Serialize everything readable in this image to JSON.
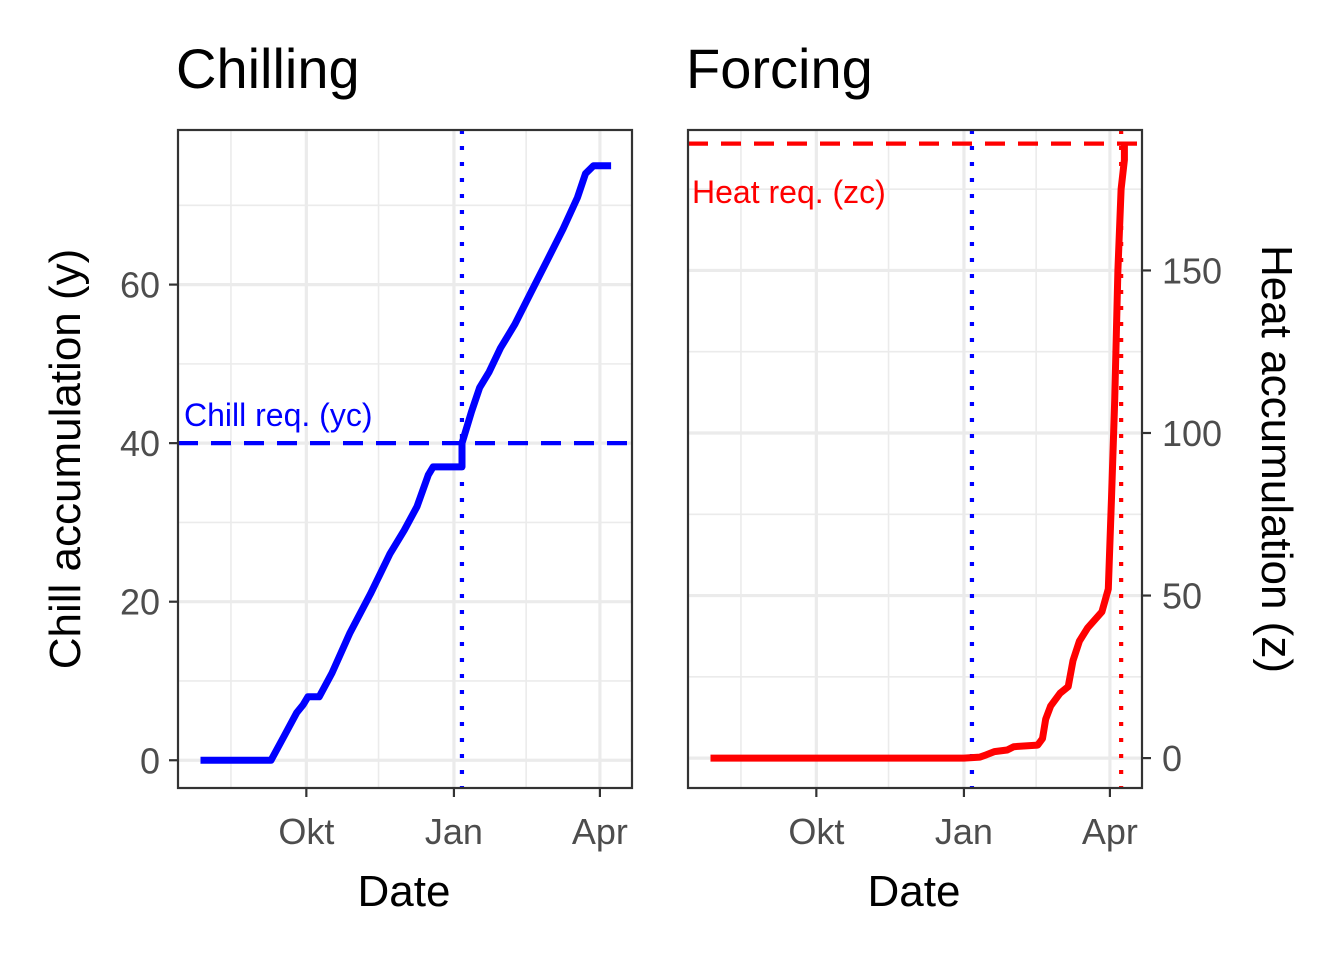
{
  "chart_data": [
    {
      "type": "line",
      "title": "Chilling",
      "xlabel": "Date",
      "ylabel": "Chill accumulation (y)",
      "x_ticks": [
        "Okt",
        "Jan",
        "Apr"
      ],
      "y_ticks": [
        0,
        20,
        40,
        60
      ],
      "xlim": [
        "2019-07-13",
        "2020-04-21"
      ],
      "ylim": [
        -3.5,
        79.5
      ],
      "line_color": "#0000ff",
      "series": [
        {
          "points": [
            [
              "2019-07-27",
              0
            ],
            [
              "2019-09-09",
              0
            ],
            [
              "2019-09-17",
              3
            ],
            [
              "2019-09-25",
              6
            ],
            [
              "2019-09-29",
              7
            ],
            [
              "2019-10-02",
              8
            ],
            [
              "2019-10-09",
              8
            ],
            [
              "2019-10-17",
              11
            ],
            [
              "2019-10-28",
              16
            ],
            [
              "2019-11-10",
              21
            ],
            [
              "2019-11-22",
              26
            ],
            [
              "2019-12-01",
              29
            ],
            [
              "2019-12-09",
              32
            ],
            [
              "2019-12-16",
              36
            ],
            [
              "2019-12-19",
              37
            ],
            [
              "2020-01-06",
              37
            ],
            [
              "2020-01-06",
              40
            ],
            [
              "2020-01-12",
              44
            ],
            [
              "2020-01-17",
              47
            ],
            [
              "2020-01-23",
              49
            ],
            [
              "2020-01-30",
              52
            ],
            [
              "2020-02-08",
              55
            ],
            [
              "2020-02-18",
              59
            ],
            [
              "2020-02-28",
              63
            ],
            [
              "2020-03-09",
              67
            ],
            [
              "2020-03-18",
              71
            ],
            [
              "2020-03-23",
              74
            ],
            [
              "2020-03-28",
              75
            ],
            [
              "2020-04-08",
              75
            ]
          ]
        }
      ],
      "hline": {
        "y": 40,
        "label": "Chill req. (yc)",
        "color": "#0000ff",
        "style": "dashed"
      },
      "vlines": [
        {
          "x": "2020-01-06",
          "color": "#0000ff",
          "style": "dotted"
        }
      ],
      "grid": true,
      "legend": "none"
    },
    {
      "type": "line",
      "title": "Forcing",
      "xlabel": "Date",
      "ylabel": "Heat accumulation (z)",
      "ylabel_position": "right",
      "x_ticks": [
        "Okt",
        "Jan",
        "Apr"
      ],
      "y_ticks": [
        0,
        50,
        100,
        150
      ],
      "xlim": [
        "2019-07-13",
        "2020-04-21"
      ],
      "ylim": [
        -9.2,
        193.2
      ],
      "line_color": "#ff0000",
      "series": [
        {
          "points": [
            [
              "2019-07-27",
              0
            ],
            [
              "2020-01-01",
              0
            ],
            [
              "2020-01-11",
              0.3
            ],
            [
              "2020-01-15",
              1
            ],
            [
              "2020-01-20",
              2
            ],
            [
              "2020-01-28",
              2.5
            ],
            [
              "2020-02-01",
              3.5
            ],
            [
              "2020-02-16",
              4
            ],
            [
              "2020-02-19",
              6
            ],
            [
              "2020-02-21",
              12
            ],
            [
              "2020-02-24",
              16
            ],
            [
              "2020-03-01",
              20
            ],
            [
              "2020-03-06",
              22
            ],
            [
              "2020-03-09",
              30
            ],
            [
              "2020-03-13",
              36
            ],
            [
              "2020-03-18",
              40
            ],
            [
              "2020-03-27",
              45
            ],
            [
              "2020-03-31",
              52
            ],
            [
              "2020-04-02",
              80
            ],
            [
              "2020-04-04",
              110
            ],
            [
              "2020-04-06",
              150
            ],
            [
              "2020-04-08",
              175
            ],
            [
              "2020-04-10",
              184
            ],
            [
              "2020-04-10",
              189
            ]
          ]
        }
      ],
      "hline": {
        "y": 189,
        "label": "Heat req. (zc)",
        "color": "#ff0000",
        "style": "dashed"
      },
      "vlines": [
        {
          "x": "2020-01-06",
          "color": "#0000ff",
          "style": "dotted"
        },
        {
          "x": "2020-04-08",
          "color": "#ff0000",
          "style": "dotted"
        }
      ],
      "grid": true,
      "legend": "none"
    }
  ]
}
